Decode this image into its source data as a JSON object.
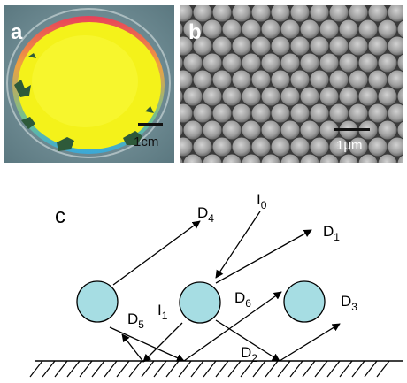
{
  "panel_a": {
    "label": "a",
    "scale_bar": "1cm",
    "colors": {
      "background": "#6c8890",
      "film": "#f4f21a",
      "edge_red": "#e8405a",
      "edge_blue": "#3aa8d8",
      "residue": "#2e5a3a"
    }
  },
  "panel_b": {
    "label": "b",
    "scale_bar": "1μm",
    "colors": {
      "background": "#3a3a3a",
      "sphere": "#9c9c9c",
      "sphere_highlight": "#c8c8c8"
    }
  },
  "panel_c": {
    "label": "c",
    "sphere_color": "#a6dde3",
    "labels": {
      "I0": {
        "base": "I",
        "sub": "0"
      },
      "I1": {
        "base": "I",
        "sub": "1"
      },
      "D1": {
        "base": "D",
        "sub": "1"
      },
      "D2": {
        "base": "D",
        "sub": "2"
      },
      "D3": {
        "base": "D",
        "sub": "3"
      },
      "D4": {
        "base": "D",
        "sub": "4"
      },
      "D5": {
        "base": "D",
        "sub": "5"
      },
      "D6": {
        "base": "D",
        "sub": "6"
      }
    }
  }
}
